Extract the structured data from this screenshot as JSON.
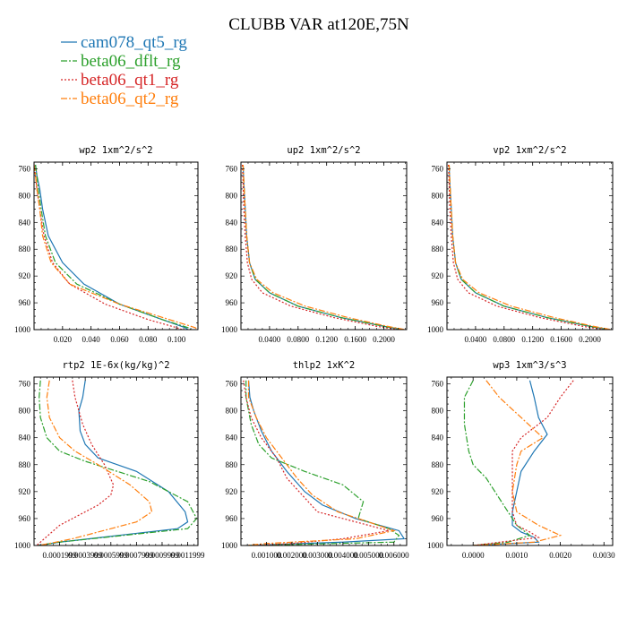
{
  "title": "CLUBB VAR at120E,75N",
  "legend": [
    {
      "name": "cam078_qt5_rg",
      "color": "#1f77b4",
      "dash": "solid"
    },
    {
      "name": "beta06_dflt_rg",
      "color": "#2ca02c",
      "dash": "dashdot"
    },
    {
      "name": "beta06_qt1_rg",
      "color": "#d62728",
      "dash": "dotted"
    },
    {
      "name": "beta06_qt2_rg",
      "color": "#ff7f0e",
      "dash": "dashdot"
    }
  ],
  "chart_data": [
    {
      "type": "line",
      "title": "wp2   1xm^2/s^2",
      "xlim": [
        0.0,
        0.115
      ],
      "ylim": [
        750,
        1000
      ],
      "y_inverted": true,
      "xticks": [
        "0.020",
        "0.040",
        "0.060",
        "0.080",
        "0.100"
      ],
      "xtick_values": [
        0.02,
        0.04,
        0.06,
        0.08,
        0.1
      ],
      "yticks": [
        "760",
        "800",
        "840",
        "880",
        "920",
        "960",
        "1000"
      ],
      "series": [
        {
          "color": "#1f77b4",
          "x": [
            0.001,
            0.002,
            0.004,
            0.006,
            0.01,
            0.02,
            0.035,
            0.06,
            0.09,
            0.106,
            0.108
          ],
          "y": [
            754,
            770,
            790,
            820,
            860,
            900,
            932,
            962,
            985,
            997,
            1000
          ]
        },
        {
          "color": "#2ca02c",
          "x": [
            0.001,
            0.002,
            0.003,
            0.005,
            0.008,
            0.015,
            0.03,
            0.06,
            0.09,
            0.108,
            0.11
          ],
          "y": [
            754,
            770,
            790,
            820,
            860,
            900,
            932,
            962,
            985,
            997,
            1000
          ]
        },
        {
          "color": "#d62728",
          "x": [
            0.0,
            0.001,
            0.002,
            0.004,
            0.007,
            0.013,
            0.025,
            0.05,
            0.08,
            0.1,
            0.104
          ],
          "y": [
            754,
            770,
            790,
            820,
            860,
            900,
            932,
            962,
            985,
            997,
            1000
          ]
        },
        {
          "color": "#ff7f0e",
          "x": [
            0.0,
            0.001,
            0.002,
            0.004,
            0.006,
            0.012,
            0.025,
            0.06,
            0.095,
            0.113,
            0.115
          ],
          "y": [
            754,
            770,
            790,
            820,
            860,
            900,
            932,
            962,
            985,
            997,
            1000
          ]
        }
      ]
    },
    {
      "type": "line",
      "title": "up2   1xm^2/s^2",
      "xlim": [
        0.0,
        0.232
      ],
      "ylim": [
        750,
        1000
      ],
      "y_inverted": true,
      "xticks": [
        "0.0400",
        "0.0800",
        "0.1200",
        "0.1600",
        "0.2000"
      ],
      "xtick_values": [
        0.04,
        0.08,
        0.12,
        0.16,
        0.2
      ],
      "yticks": [
        "760",
        "800",
        "840",
        "880",
        "920",
        "960",
        "1000"
      ],
      "series": [
        {
          "color": "#1f77b4",
          "x": [
            0.003,
            0.004,
            0.006,
            0.008,
            0.012,
            0.02,
            0.04,
            0.08,
            0.14,
            0.2,
            0.225
          ],
          "y": [
            754,
            780,
            820,
            860,
            900,
            925,
            945,
            965,
            982,
            995,
            1000
          ]
        },
        {
          "color": "#2ca02c",
          "x": [
            0.003,
            0.004,
            0.006,
            0.008,
            0.012,
            0.02,
            0.04,
            0.08,
            0.14,
            0.2,
            0.226
          ],
          "y": [
            754,
            780,
            820,
            860,
            900,
            925,
            945,
            965,
            982,
            995,
            1000
          ]
        },
        {
          "color": "#d62728",
          "x": [
            0.002,
            0.003,
            0.004,
            0.006,
            0.009,
            0.015,
            0.03,
            0.07,
            0.13,
            0.19,
            0.22
          ],
          "y": [
            754,
            780,
            820,
            860,
            900,
            925,
            945,
            965,
            982,
            995,
            1000
          ]
        },
        {
          "color": "#ff7f0e",
          "x": [
            0.003,
            0.004,
            0.006,
            0.008,
            0.012,
            0.022,
            0.045,
            0.09,
            0.15,
            0.205,
            0.23
          ],
          "y": [
            754,
            780,
            820,
            860,
            900,
            925,
            945,
            965,
            982,
            995,
            1000
          ]
        }
      ]
    },
    {
      "type": "line",
      "title": "vp2   1xm^2/s^2",
      "xlim": [
        0.0,
        0.232
      ],
      "ylim": [
        750,
        1000
      ],
      "y_inverted": true,
      "xticks": [
        "0.0400",
        "0.0800",
        "0.1200",
        "0.1600",
        "0.2000"
      ],
      "xtick_values": [
        0.04,
        0.08,
        0.12,
        0.16,
        0.2
      ],
      "yticks": [
        "760",
        "800",
        "840",
        "880",
        "920",
        "960",
        "1000"
      ],
      "series": [
        {
          "color": "#1f77b4",
          "x": [
            0.003,
            0.004,
            0.006,
            0.008,
            0.012,
            0.02,
            0.04,
            0.08,
            0.14,
            0.2,
            0.225
          ],
          "y": [
            754,
            780,
            820,
            860,
            900,
            925,
            945,
            965,
            982,
            995,
            1000
          ]
        },
        {
          "color": "#2ca02c",
          "x": [
            0.003,
            0.004,
            0.006,
            0.008,
            0.012,
            0.02,
            0.04,
            0.08,
            0.14,
            0.2,
            0.226
          ],
          "y": [
            754,
            780,
            820,
            860,
            900,
            925,
            945,
            965,
            982,
            995,
            1000
          ]
        },
        {
          "color": "#d62728",
          "x": [
            0.002,
            0.003,
            0.004,
            0.006,
            0.009,
            0.015,
            0.03,
            0.07,
            0.13,
            0.19,
            0.22
          ],
          "y": [
            754,
            780,
            820,
            860,
            900,
            925,
            945,
            965,
            982,
            995,
            1000
          ]
        },
        {
          "color": "#ff7f0e",
          "x": [
            0.003,
            0.004,
            0.006,
            0.008,
            0.012,
            0.022,
            0.045,
            0.09,
            0.15,
            0.205,
            0.23
          ],
          "y": [
            754,
            780,
            820,
            860,
            900,
            925,
            945,
            965,
            982,
            995,
            1000
          ]
        }
      ]
    },
    {
      "type": "line",
      "title": "rtp2   1E-6x(kg/kg)^2",
      "xlim": [
        0.0,
        0.00128
      ],
      "ylim": [
        750,
        1000
      ],
      "y_inverted": true,
      "xticks": [
        "0.0001999",
        "0.0003999",
        "0.0005999",
        "0.0007999",
        "0.0009999",
        "0.0011999"
      ],
      "xtick_values": [
        0.0002,
        0.0004,
        0.0006,
        0.0008,
        0.001,
        0.0012
      ],
      "yticks": [
        "760",
        "800",
        "840",
        "880",
        "920",
        "960",
        "1000"
      ],
      "series": [
        {
          "color": "#1f77b4",
          "x": [
            0.0004,
            0.00038,
            0.00035,
            0.00036,
            0.0004,
            0.0005,
            0.0008,
            0.00105,
            0.00118,
            0.0012,
            0.00112,
            0.0002,
            3e-05
          ],
          "y": [
            755,
            780,
            800,
            830,
            850,
            870,
            890,
            920,
            950,
            965,
            975,
            995,
            1000
          ]
        },
        {
          "color": "#2ca02c",
          "x": [
            5e-05,
            4e-05,
            5e-05,
            0.0001,
            0.0002,
            0.0004,
            0.0009,
            0.0012,
            0.00127,
            0.0012,
            0.0002,
            3e-05
          ],
          "y": [
            755,
            780,
            810,
            840,
            860,
            875,
            905,
            935,
            960,
            975,
            995,
            1000
          ]
        },
        {
          "color": "#d62728",
          "x": [
            0.0003,
            0.00032,
            0.00038,
            0.00045,
            0.00055,
            0.00062,
            0.0006,
            0.0005,
            0.00035,
            0.0002,
            8e-05,
            2e-05
          ],
          "y": [
            755,
            780,
            820,
            850,
            880,
            910,
            925,
            940,
            955,
            970,
            990,
            1000
          ]
        },
        {
          "color": "#ff7f0e",
          "x": [
            0.00012,
            0.0001,
            0.00012,
            0.0002,
            0.00032,
            0.0005,
            0.00075,
            0.0009,
            0.00092,
            0.0008,
            0.0003,
            4e-05
          ],
          "y": [
            755,
            780,
            810,
            840,
            860,
            880,
            910,
            935,
            950,
            965,
            990,
            1000
          ]
        }
      ]
    },
    {
      "type": "line",
      "title": "thlp2   1xK^2",
      "xlim": [
        0.0,
        0.0065
      ],
      "ylim": [
        750,
        1000
      ],
      "y_inverted": true,
      "xticks": [
        "0.001000",
        "0.002000",
        "0.003000",
        "0.004000",
        "0.005000",
        "0.006000"
      ],
      "xtick_values": [
        0.001,
        0.002,
        0.003,
        0.004,
        0.005,
        0.006
      ],
      "yticks": [
        "760",
        "800",
        "840",
        "880",
        "920",
        "960",
        "1000"
      ],
      "series": [
        {
          "color": "#1f77b4",
          "x": [
            0.0003,
            0.00035,
            0.0005,
            0.0008,
            0.0012,
            0.0018,
            0.0025,
            0.0032,
            0.0045,
            0.0062,
            0.0064,
            0.004,
            0.0002
          ],
          "y": [
            755,
            780,
            800,
            830,
            860,
            890,
            920,
            940,
            960,
            978,
            990,
            995,
            1000
          ]
        },
        {
          "color": "#2ca02c",
          "x": [
            0.0002,
            0.0002,
            0.0004,
            0.0007,
            0.0012,
            0.0025,
            0.004,
            0.0048,
            0.0046,
            0.0058,
            0.0062,
            0.006,
            0.0003
          ],
          "y": [
            755,
            780,
            820,
            850,
            870,
            890,
            910,
            935,
            960,
            975,
            985,
            995,
            1000
          ]
        },
        {
          "color": "#d62728",
          "x": [
            0.0001,
            0.0002,
            0.0004,
            0.0008,
            0.0014,
            0.0018,
            0.0024,
            0.003,
            0.0045,
            0.0058,
            0.004,
            0.002,
            0.0005
          ],
          "y": [
            755,
            780,
            810,
            840,
            870,
            900,
            925,
            950,
            965,
            978,
            990,
            997,
            1000
          ]
        },
        {
          "color": "#ff7f0e",
          "x": [
            0.0003,
            0.0003,
            0.0006,
            0.001,
            0.0016,
            0.0022,
            0.0028,
            0.0038,
            0.005,
            0.006,
            0.0045,
            0.001,
            0.0002
          ],
          "y": [
            755,
            780,
            810,
            840,
            870,
            900,
            925,
            950,
            965,
            978,
            990,
            997,
            1000
          ]
        }
      ]
    },
    {
      "type": "line",
      "title": "wp3   1xm^3/s^3",
      "xlim": [
        -0.0006,
        0.0032
      ],
      "ylim": [
        750,
        1000
      ],
      "y_inverted": true,
      "xticks": [
        "0.0000",
        "0.0010",
        "0.0020",
        "0.0030"
      ],
      "xtick_values": [
        0.0,
        0.001,
        0.002,
        0.003
      ],
      "yticks": [
        "760",
        "800",
        "840",
        "880",
        "920",
        "960",
        "1000"
      ],
      "series": [
        {
          "color": "#1f77b4",
          "x": [
            0.0013,
            0.0014,
            0.0015,
            0.0017,
            0.0014,
            0.0011,
            0.001,
            0.0009,
            0.0009,
            0.0011,
            0.0014,
            0.0015,
            0.0
          ],
          "y": [
            755,
            780,
            810,
            835,
            860,
            890,
            920,
            950,
            970,
            980,
            988,
            995,
            1000
          ]
        },
        {
          "color": "#2ca02c",
          "x": [
            0.0,
            -0.0002,
            -0.0002,
            -0.0001,
            0.0,
            0.0003,
            0.0005,
            0.0008,
            0.001,
            0.0013,
            0.0008,
            0.0
          ],
          "y": [
            755,
            780,
            820,
            860,
            880,
            900,
            920,
            950,
            970,
            985,
            995,
            1000
          ]
        },
        {
          "color": "#d62728",
          "x": [
            0.0023,
            0.002,
            0.0017,
            0.0011,
            0.0009,
            0.0009,
            0.0009,
            0.0009,
            0.001,
            0.0013,
            0.0015,
            0.0
          ],
          "y": [
            755,
            780,
            810,
            840,
            860,
            890,
            920,
            950,
            970,
            980,
            988,
            1000
          ]
        },
        {
          "color": "#ff7f0e",
          "x": [
            0.0003,
            0.0006,
            0.0011,
            0.0016,
            0.0011,
            0.001,
            0.0009,
            0.001,
            0.0015,
            0.002,
            0.0014,
            0.0
          ],
          "y": [
            755,
            780,
            810,
            840,
            860,
            880,
            920,
            950,
            970,
            985,
            995,
            1000
          ]
        }
      ]
    }
  ]
}
